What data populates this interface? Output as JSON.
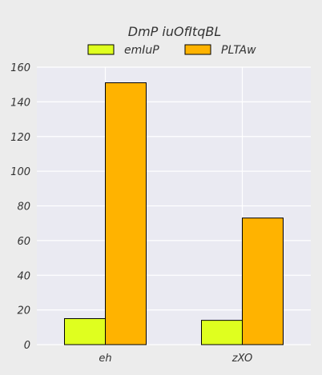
{
  "chart_data": {
    "type": "bar",
    "title": "DmP iuOfItqBL",
    "categories": [
      "eh",
      "zXO"
    ],
    "series": [
      {
        "name": "emIuP",
        "values": [
          15,
          14
        ],
        "color": "#dfff1f"
      },
      {
        "name": "PLTAw",
        "values": [
          151,
          73
        ],
        "color": "#ffb300"
      }
    ],
    "xlabel": "",
    "ylabel": "",
    "ylim": [
      0,
      160
    ],
    "yticks": [
      0,
      20,
      40,
      60,
      80,
      100,
      120,
      140,
      160
    ],
    "grid": true,
    "legend": "top-center",
    "plot_background": "#eaeaf2",
    "grid_color": "#ffffff"
  }
}
